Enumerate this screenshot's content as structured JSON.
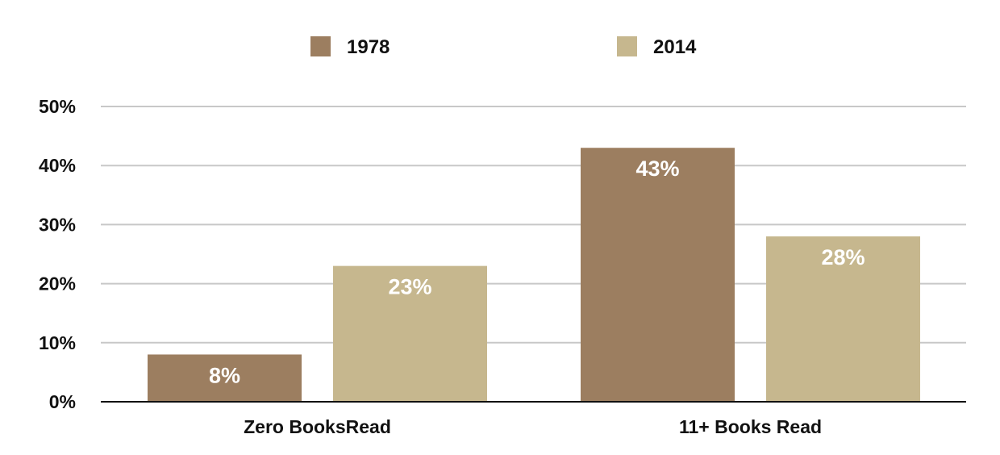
{
  "chart_data": {
    "type": "bar",
    "categories": [
      "Zero BooksRead",
      "11+ Books Read"
    ],
    "series": [
      {
        "name": "1978",
        "values": [
          8,
          43
        ],
        "labels": [
          "8%",
          "43%"
        ],
        "color": "#9c7e60"
      },
      {
        "name": "2014",
        "values": [
          23,
          28
        ],
        "labels": [
          "23%",
          "28%"
        ],
        "color": "#c6b78e"
      }
    ],
    "yticks": [
      0,
      10,
      20,
      30,
      40,
      50
    ],
    "ytick_labels": [
      "0%",
      "10%",
      "20%",
      "30%",
      "40%",
      "50%"
    ],
    "ylim": [
      0,
      50
    ],
    "grid": true,
    "legend_position": "top-center",
    "colors": {
      "grid": "#c8c8c8",
      "axis": "#111111",
      "data_label": "#ffffff"
    }
  }
}
